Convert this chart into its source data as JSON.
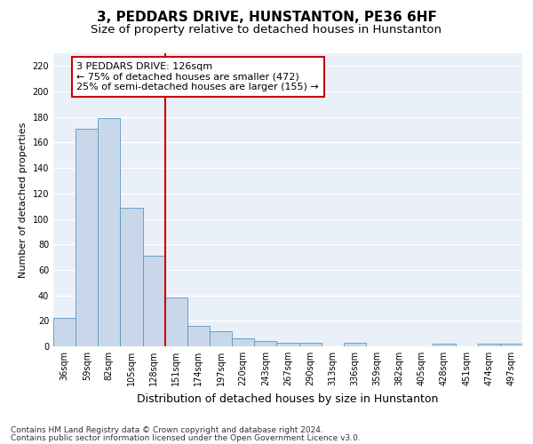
{
  "title": "3, PEDDARS DRIVE, HUNSTANTON, PE36 6HF",
  "subtitle": "Size of property relative to detached houses in Hunstanton",
  "xlabel": "Distribution of detached houses by size in Hunstanton",
  "ylabel": "Number of detached properties",
  "categories": [
    "36sqm",
    "59sqm",
    "82sqm",
    "105sqm",
    "128sqm",
    "151sqm",
    "174sqm",
    "197sqm",
    "220sqm",
    "243sqm",
    "267sqm",
    "290sqm",
    "313sqm",
    "336sqm",
    "359sqm",
    "382sqm",
    "405sqm",
    "428sqm",
    "451sqm",
    "474sqm",
    "497sqm"
  ],
  "values": [
    22,
    171,
    179,
    109,
    71,
    38,
    16,
    12,
    6,
    4,
    3,
    3,
    0,
    3,
    0,
    0,
    0,
    2,
    0,
    2,
    2
  ],
  "bar_color": "#c8d8ea",
  "bar_edge_color": "#5a96c0",
  "red_line_index": 4,
  "annotation_text": "3 PEDDARS DRIVE: 126sqm\n← 75% of detached houses are smaller (472)\n25% of semi-detached houses are larger (155) →",
  "annotation_box_facecolor": "#ffffff",
  "annotation_box_edgecolor": "#cc0000",
  "ylim": [
    0,
    230
  ],
  "yticks": [
    0,
    20,
    40,
    60,
    80,
    100,
    120,
    140,
    160,
    180,
    200,
    220
  ],
  "footnote1": "Contains HM Land Registry data © Crown copyright and database right 2024.",
  "footnote2": "Contains public sector information licensed under the Open Government Licence v3.0.",
  "title_fontsize": 11,
  "subtitle_fontsize": 9.5,
  "xlabel_fontsize": 9,
  "ylabel_fontsize": 8,
  "tick_fontsize": 7,
  "annotation_fontsize": 8,
  "footnote_fontsize": 6.5,
  "bg_color": "#eaf0f8",
  "grid_color": "#ffffff",
  "red_line_color": "#cc0000",
  "fig_bg": "#ffffff"
}
